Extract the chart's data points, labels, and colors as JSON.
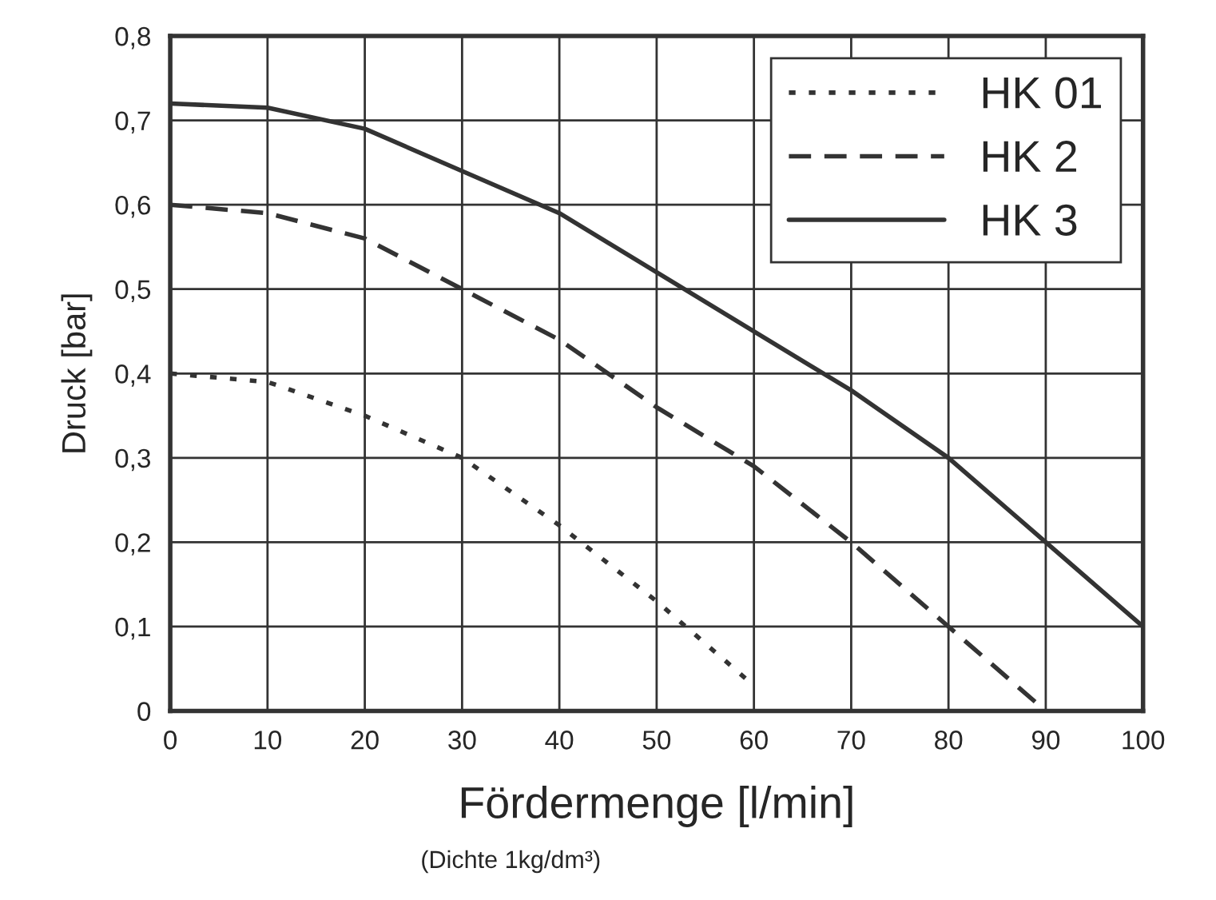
{
  "chart_data": {
    "type": "line",
    "xlabel": "Fördermenge [l/min]",
    "ylabel": "Druck [bar]",
    "annotations": [
      "(Dichte 1kg/dm³)"
    ],
    "xlim": [
      0,
      100
    ],
    "xticks": [
      0,
      10,
      20,
      30,
      40,
      50,
      60,
      70,
      80,
      90,
      100
    ],
    "ylim": [
      0,
      0.8
    ],
    "yticks": [
      0,
      {
        "value": 0.1,
        "label": "0,1"
      },
      {
        "value": 0.2,
        "label": "0,2"
      },
      {
        "value": 0.3,
        "label": "0,3"
      },
      {
        "value": 0.4,
        "label": "0,4"
      },
      {
        "value": 0.5,
        "label": "0,5"
      },
      {
        "value": 0.6,
        "label": "0,6"
      },
      {
        "value": 0.7,
        "label": "0,7"
      },
      {
        "value": 0.8,
        "label": "0,8"
      }
    ],
    "grid": true,
    "legend": "top right",
    "series": [
      {
        "name": "HK 01",
        "color": "#333333",
        "line_style": "dotted",
        "x": [
          0,
          10,
          20,
          30,
          40,
          50,
          60
        ],
        "values": [
          0.4,
          0.39,
          0.35,
          0.3,
          0.22,
          0.13,
          0.03
        ]
      },
      {
        "name": "HK 2",
        "color": "#333333",
        "line_style": "dashed",
        "x": [
          0,
          10,
          20,
          30,
          40,
          50,
          60,
          70,
          80,
          89
        ],
        "values": [
          0.6,
          0.59,
          0.56,
          0.5,
          0.44,
          0.36,
          0.29,
          0.2,
          0.1,
          0.01
        ]
      },
      {
        "name": "HK 3",
        "color": "#333333",
        "line_style": "solid",
        "x": [
          0,
          10,
          20,
          30,
          40,
          50,
          60,
          70,
          80,
          90,
          100
        ],
        "values": [
          0.72,
          0.715,
          0.69,
          0.64,
          0.59,
          0.52,
          0.45,
          0.38,
          0.3,
          0.2,
          0.1
        ]
      }
    ]
  }
}
